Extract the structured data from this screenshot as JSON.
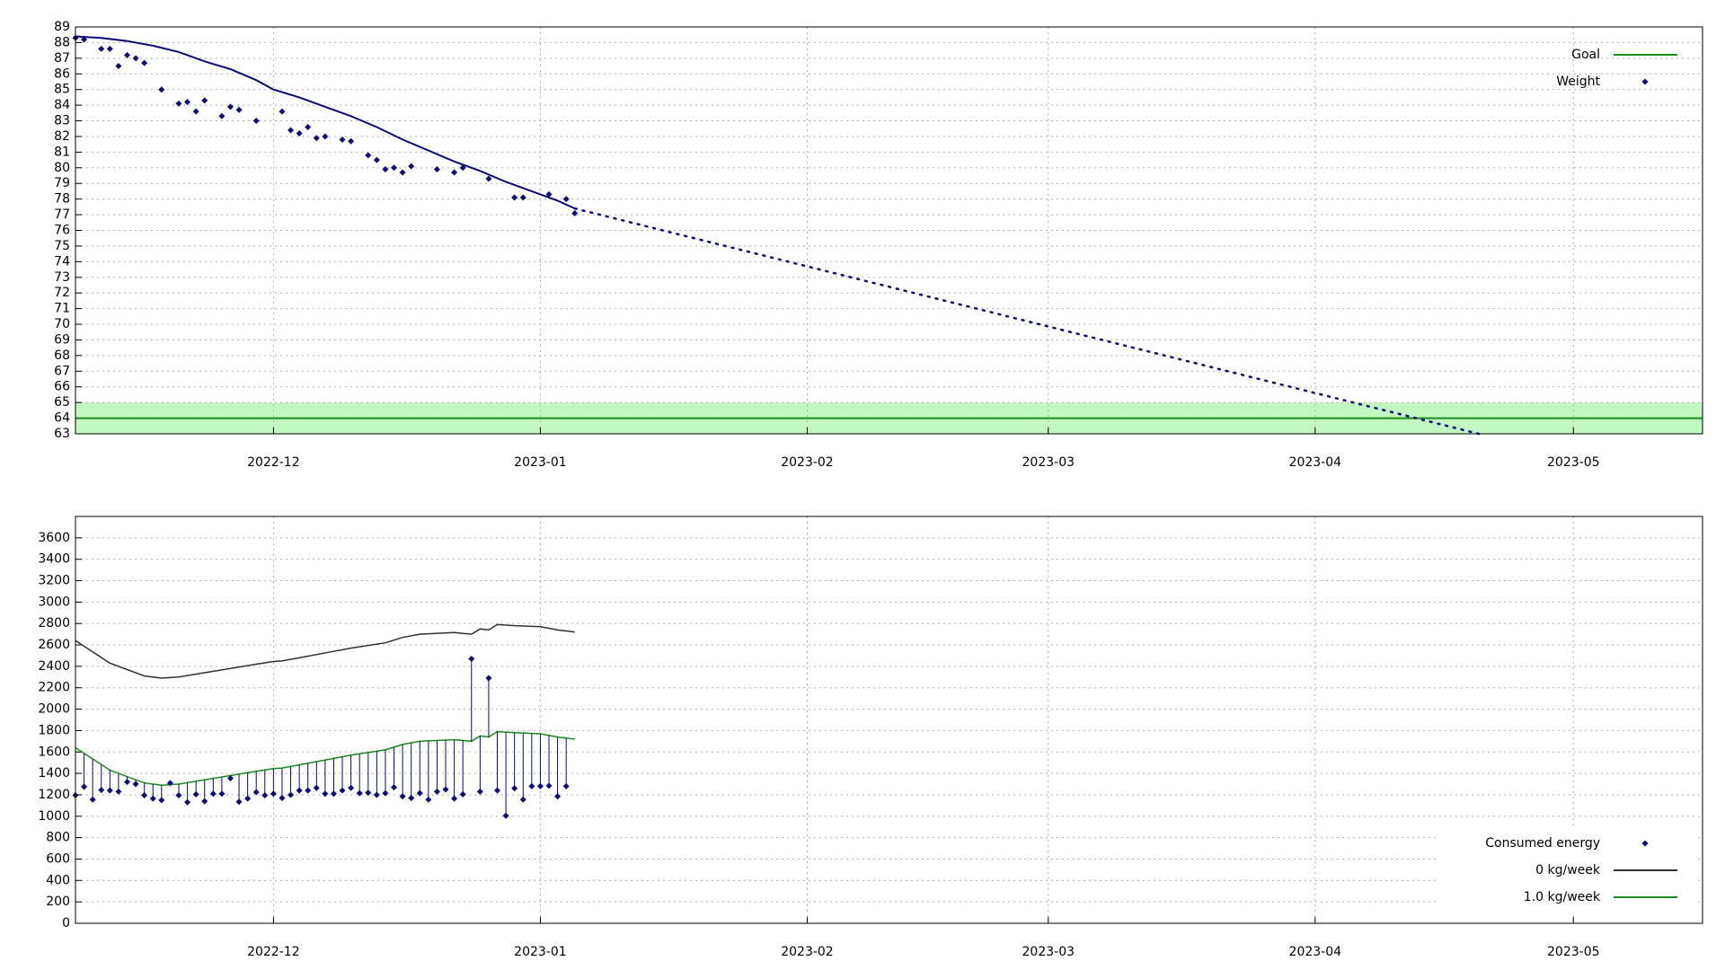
{
  "chart_data": [
    {
      "type": "line",
      "xlim": [
        -23,
        166
      ],
      "xticks": [
        {
          "value": 0,
          "label": "2022-12"
        },
        {
          "value": 31,
          "label": "2023-01"
        },
        {
          "value": 62,
          "label": "2023-02"
        },
        {
          "value": 90,
          "label": "2023-03"
        },
        {
          "value": 121,
          "label": "2023-04"
        },
        {
          "value": 151,
          "label": "2023-05"
        }
      ],
      "ylim": [
        63,
        89
      ],
      "yticks": [
        63,
        64,
        65,
        66,
        67,
        68,
        69,
        70,
        71,
        72,
        73,
        74,
        75,
        76,
        77,
        78,
        79,
        80,
        81,
        82,
        83,
        84,
        85,
        86,
        87,
        88,
        89
      ],
      "grid": true,
      "legend": "top-right",
      "series": [
        {
          "name": "Goal",
          "kind": "hline",
          "color": "#1a8c1a",
          "values": [
            64
          ],
          "band": [
            63,
            65
          ],
          "band_color": "#c2f7c2"
        },
        {
          "name": "Weight",
          "kind": "points",
          "color": "#0a0a78",
          "x": [
            -23,
            -22,
            -20,
            -19,
            -18,
            -17,
            -16,
            -15,
            -13,
            -11,
            -10,
            -9,
            -8,
            -6,
            -5,
            -4,
            -2,
            1,
            2,
            3,
            4,
            5,
            6,
            8,
            9,
            11,
            12,
            13,
            14,
            15,
            16,
            19,
            21,
            22,
            25,
            28,
            29,
            32,
            34,
            35
          ],
          "values": [
            88.3,
            88.2,
            87.6,
            87.6,
            86.5,
            87.2,
            87.0,
            86.7,
            85.0,
            84.1,
            84.2,
            83.6,
            84.3,
            83.3,
            83.9,
            83.7,
            83.0,
            83.6,
            82.4,
            82.2,
            82.6,
            81.9,
            82.0,
            81.8,
            81.7,
            80.8,
            80.5,
            79.9,
            80.0,
            79.7,
            80.1,
            79.9,
            79.7,
            80.0,
            79.3,
            78.1,
            78.1,
            78.3,
            78.0,
            77.1
          ]
        },
        {
          "kind": "line",
          "color": "#0a0a78",
          "x": [
            -23,
            -20,
            -17,
            -14,
            -11,
            -8,
            -5,
            -2,
            0,
            3,
            6,
            9,
            12,
            15,
            18,
            21,
            24,
            27,
            30,
            33,
            35
          ],
          "values": [
            88.4,
            88.3,
            88.1,
            87.8,
            87.4,
            86.8,
            86.3,
            85.6,
            85.0,
            84.5,
            83.9,
            83.3,
            82.6,
            81.8,
            81.1,
            80.4,
            79.8,
            79.1,
            78.5,
            77.9,
            77.4
          ]
        },
        {
          "kind": "line",
          "style": "dotted",
          "color": "#0a0a78",
          "x": [
            35,
            140
          ],
          "values": [
            77.4,
            63
          ]
        }
      ]
    },
    {
      "type": "line",
      "xlim": [
        -23,
        166
      ],
      "xticks": [
        {
          "value": 0,
          "label": "2022-12"
        },
        {
          "value": 31,
          "label": "2023-01"
        },
        {
          "value": 62,
          "label": "2023-02"
        },
        {
          "value": 90,
          "label": "2023-03"
        },
        {
          "value": 121,
          "label": "2023-04"
        },
        {
          "value": 151,
          "label": "2023-05"
        }
      ],
      "ylim": [
        0,
        3800
      ],
      "yticks": [
        0,
        200,
        400,
        600,
        800,
        1000,
        1200,
        1400,
        1600,
        1800,
        2000,
        2200,
        2400,
        2600,
        2800,
        3000,
        3200,
        3400,
        3600
      ],
      "grid": true,
      "legend": "bottom-right",
      "series": [
        {
          "name": "Consumed energy",
          "kind": "points",
          "stems": true,
          "color": "#0a0a78",
          "x": [
            -23,
            -22,
            -21,
            -20,
            -19,
            -18,
            -17,
            -16,
            -15,
            -14,
            -13,
            -12,
            -11,
            -10,
            -9,
            -8,
            -7,
            -6,
            -5,
            -4,
            -3,
            -2,
            -1,
            0,
            1,
            2,
            3,
            4,
            5,
            6,
            7,
            8,
            9,
            10,
            11,
            12,
            13,
            14,
            15,
            16,
            17,
            18,
            19,
            20,
            21,
            22,
            23,
            24,
            25,
            26,
            27,
            28,
            29,
            30,
            31,
            32,
            33,
            34
          ],
          "values": [
            1195,
            1275,
            1155,
            1245,
            1240,
            1230,
            1320,
            1300,
            1195,
            1165,
            1150,
            1310,
            1195,
            1130,
            1205,
            1140,
            1210,
            1210,
            1355,
            1135,
            1165,
            1225,
            1195,
            1210,
            1170,
            1200,
            1240,
            1240,
            1265,
            1210,
            1210,
            1240,
            1265,
            1215,
            1220,
            1200,
            1215,
            1270,
            1185,
            1170,
            1215,
            1155,
            1230,
            1250,
            1165,
            1205,
            2470,
            1230,
            2290,
            1240,
            1005,
            1260,
            1155,
            1280,
            1280,
            1285,
            1185,
            1280
          ]
        },
        {
          "name": "0 kg/week",
          "kind": "line",
          "color": "#303030",
          "x": [
            -23,
            -19,
            -15,
            -13,
            -11,
            -8,
            -5,
            -2,
            0,
            1,
            3,
            7,
            9,
            13,
            15,
            17,
            21,
            23,
            24,
            25,
            26,
            28,
            31,
            33,
            35
          ],
          "values": [
            2640,
            2430,
            2310,
            2290,
            2300,
            2340,
            2380,
            2420,
            2445,
            2450,
            2480,
            2540,
            2570,
            2620,
            2670,
            2700,
            2715,
            2700,
            2750,
            2740,
            2790,
            2780,
            2770,
            2740,
            2720
          ]
        },
        {
          "name": "1.0 kg/week",
          "kind": "line",
          "color": "#1a8c1a",
          "x": [
            -23,
            -19,
            -15,
            -13,
            -11,
            -8,
            -5,
            -2,
            0,
            1,
            3,
            7,
            9,
            13,
            15,
            17,
            21,
            23,
            24,
            25,
            26,
            28,
            31,
            33,
            35
          ],
          "values": [
            1640,
            1430,
            1310,
            1290,
            1300,
            1340,
            1380,
            1420,
            1445,
            1450,
            1480,
            1540,
            1570,
            1620,
            1670,
            1700,
            1715,
            1700,
            1750,
            1740,
            1790,
            1780,
            1770,
            1740,
            1720
          ]
        }
      ]
    }
  ]
}
